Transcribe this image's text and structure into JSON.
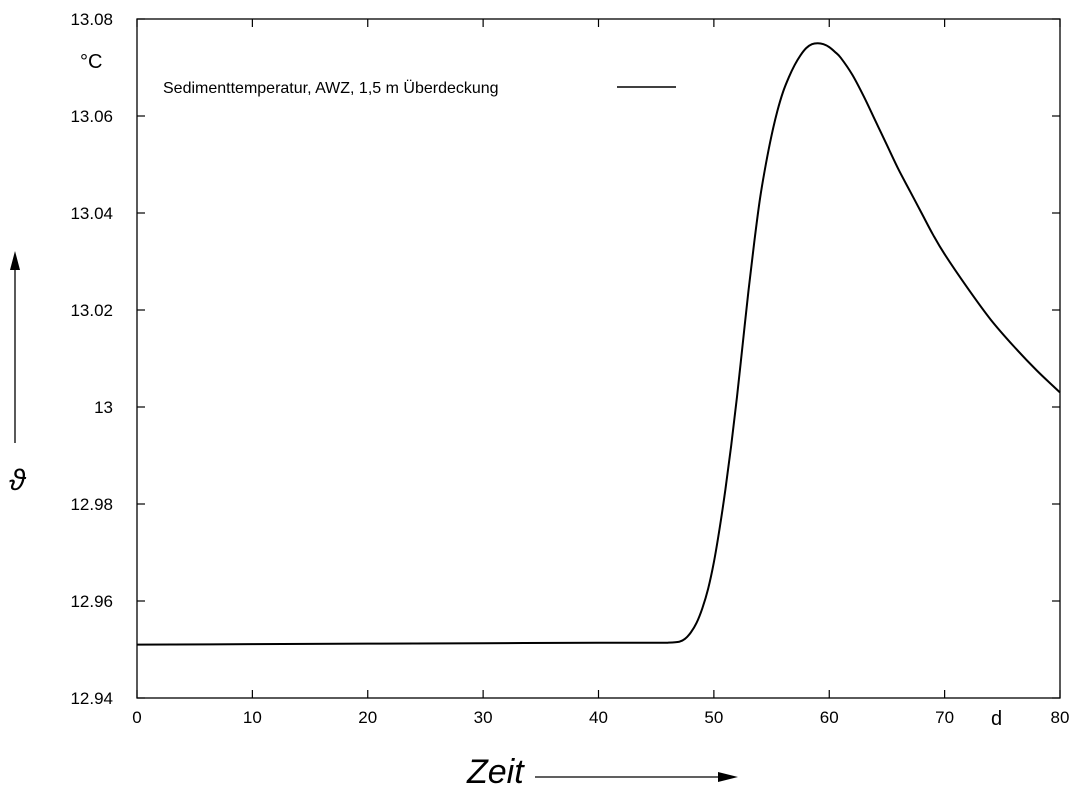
{
  "chart_data": {
    "type": "line",
    "title": "",
    "xlabel": "Zeit",
    "ylabel": "ϑ",
    "x_unit": "d",
    "y_unit": "°C",
    "xlim": [
      0,
      80
    ],
    "ylim": [
      12.94,
      13.08
    ],
    "x_ticks": [
      0,
      10,
      20,
      30,
      40,
      50,
      60,
      70,
      80
    ],
    "x_tick_labels": [
      "0",
      "10",
      "20",
      "30",
      "40",
      "50",
      "60",
      "70",
      "80"
    ],
    "y_ticks": [
      12.94,
      12.96,
      12.98,
      13.0,
      13.02,
      13.04,
      13.06,
      13.08
    ],
    "y_tick_labels": [
      "12.94",
      "12.96",
      "12.98",
      "13",
      "13.02",
      "13.04",
      "13.06",
      "13.08"
    ],
    "grid": false,
    "legend_position": "top-left",
    "series": [
      {
        "name": "Sedimenttemperatur, AWZ, 1,5  m Überdeckung",
        "color": "#000000",
        "x": [
          0,
          10,
          20,
          30,
          40,
          45,
          46,
          47,
          47.5,
          48,
          48.5,
          49,
          49.5,
          50,
          50.5,
          51,
          51.5,
          52,
          52.5,
          53,
          53.5,
          54,
          54.5,
          55,
          55.5,
          56,
          56.5,
          57,
          57.5,
          58,
          58.5,
          59,
          59.5,
          60,
          60.5,
          61,
          62,
          63,
          64,
          65,
          66,
          67,
          68,
          69,
          70,
          72,
          74,
          76,
          78,
          80
        ],
        "y": [
          12.951,
          12.9511,
          12.9512,
          12.9513,
          12.9514,
          12.9514,
          12.9514,
          12.9516,
          12.9522,
          12.9535,
          12.9555,
          12.9585,
          12.9625,
          12.968,
          12.975,
          12.983,
          12.992,
          13.002,
          13.013,
          13.024,
          13.034,
          13.043,
          13.05,
          13.056,
          13.061,
          13.065,
          13.068,
          13.0705,
          13.0725,
          13.074,
          13.0748,
          13.075,
          13.0748,
          13.0742,
          13.0732,
          13.072,
          13.0685,
          13.064,
          13.059,
          13.054,
          13.049,
          13.0445,
          13.04,
          13.0355,
          13.0315,
          13.0245,
          13.018,
          13.0125,
          13.0075,
          13.003
        ]
      }
    ]
  }
}
